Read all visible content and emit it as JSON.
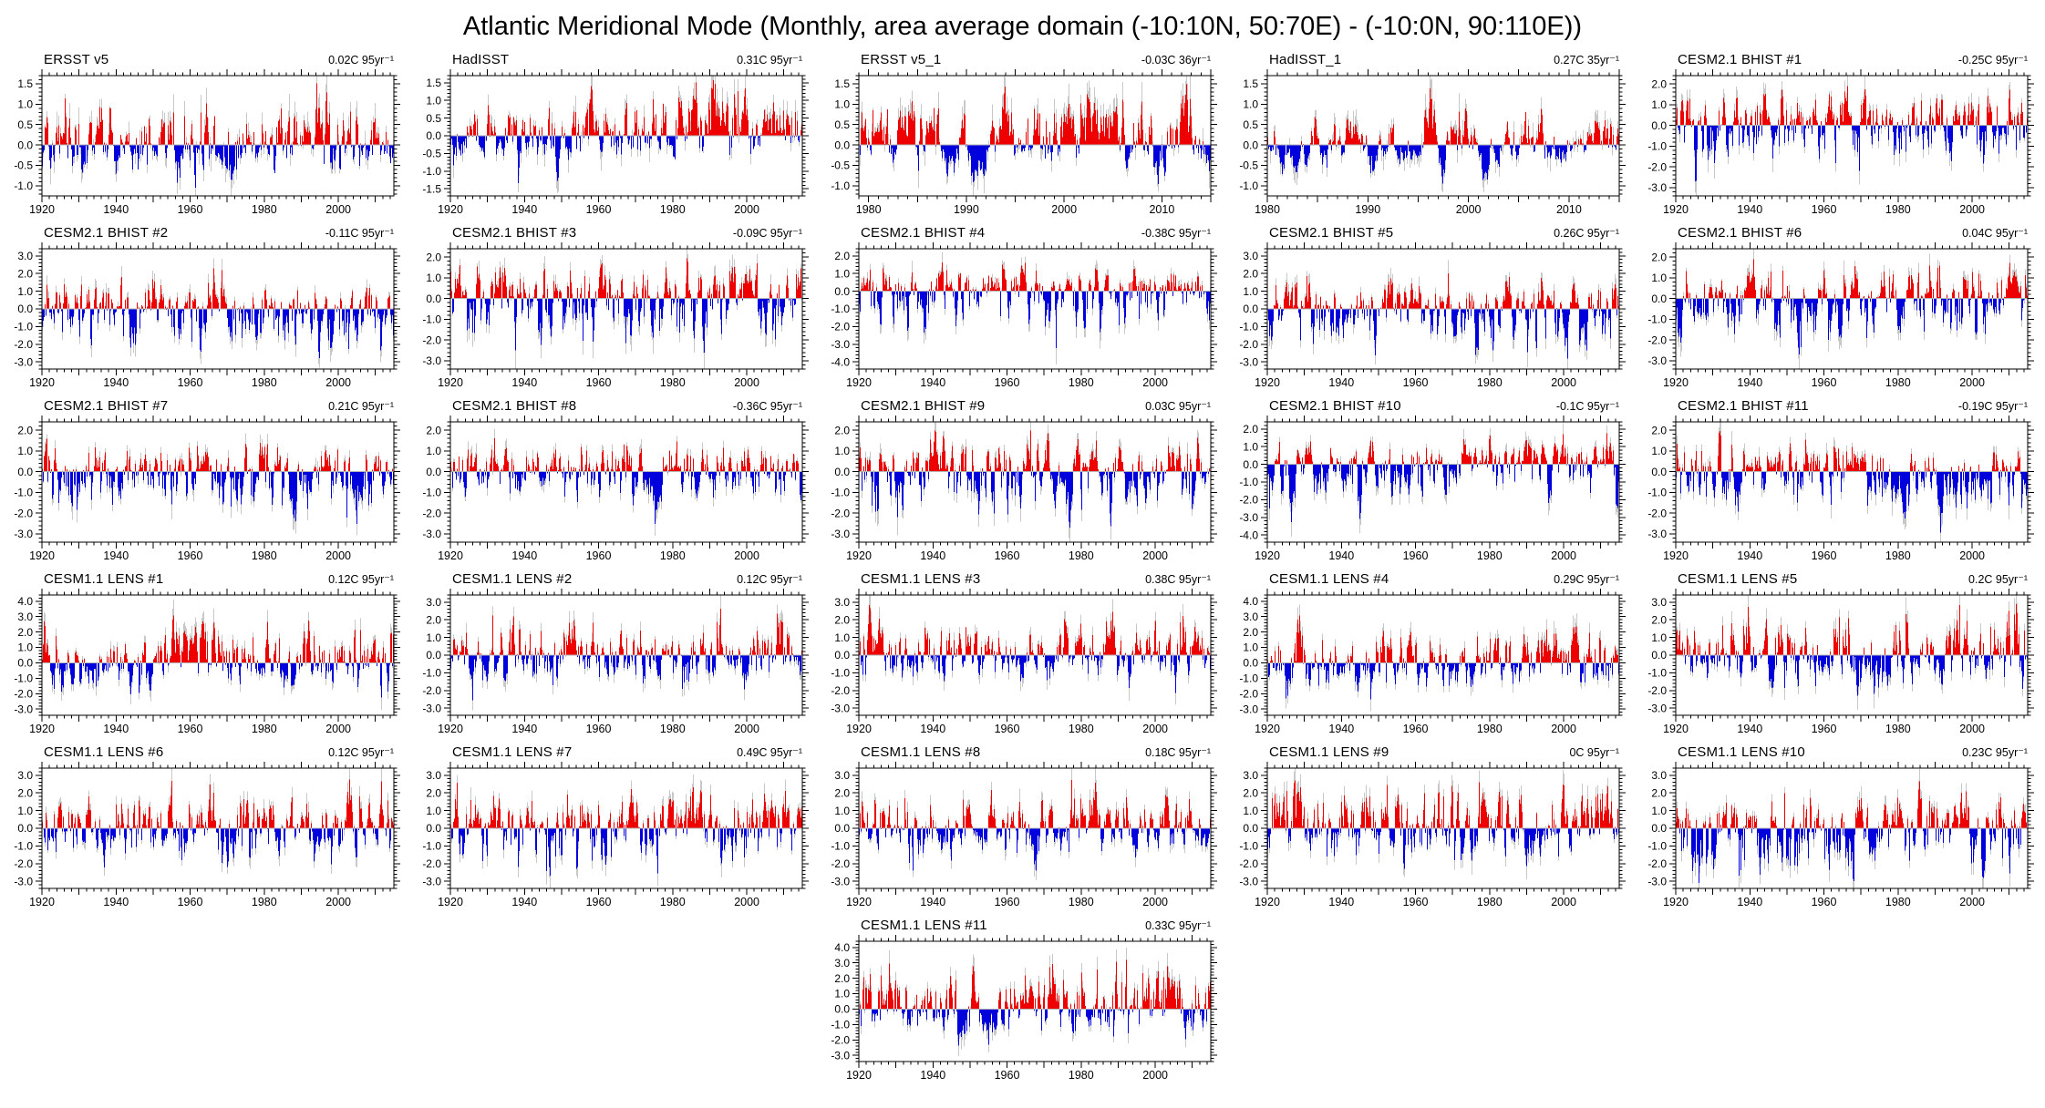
{
  "page": {
    "title": "Atlantic Meridional Mode (Monthly, area average domain (-10:10N, 50:70E) - (-10:0N, 90:110E))"
  },
  "colors": {
    "positive_bar": "#ee0000",
    "negative_bar": "#0000dd",
    "raw_envelope_bar": "#c8c8c8",
    "zero_line": "#b4b4b4",
    "axis": "#000000",
    "background": "#ffffff"
  },
  "layout": {
    "columns": 5,
    "rows": 6,
    "last_row_panel_column": 3,
    "legend": "none",
    "grid_lines": "off"
  },
  "chart_data": [
    {
      "type": "bar",
      "title": "ERSST v5",
      "trend_label": "0.02C 95yr⁻¹",
      "x_start": 1920,
      "x_end": 2015,
      "xticks": [
        1920,
        1940,
        1960,
        1980,
        2000
      ],
      "ystep": 0.5,
      "ymin_label": -1.0,
      "ymax_label": 1.5,
      "ylim": [
        -1.25,
        1.7
      ],
      "est_max": 1.5,
      "est_min": -1.05,
      "seed": 11
    },
    {
      "type": "bar",
      "title": "HadISST",
      "trend_label": "0.31C 95yr⁻¹",
      "x_start": 1920,
      "x_end": 2015,
      "xticks": [
        1920,
        1940,
        1960,
        1980,
        2000
      ],
      "ystep": 0.5,
      "ymin_label": -1.5,
      "ymax_label": 1.5,
      "ylim": [
        -1.7,
        1.7
      ],
      "est_max": 1.5,
      "est_min": -1.25,
      "seed": 22
    },
    {
      "type": "bar",
      "title": "ERSST v5_1",
      "trend_label": "-0.03C 36yr⁻¹",
      "x_start": 1979,
      "x_end": 2015,
      "xticks": [
        1980,
        1990,
        2000,
        2010
      ],
      "ystep": 0.5,
      "ymin_label": -1.0,
      "ymax_label": 1.5,
      "ylim": [
        -1.25,
        1.7
      ],
      "est_max": 1.5,
      "est_min": -0.95,
      "seed": 33
    },
    {
      "type": "bar",
      "title": "HadISST_1",
      "trend_label": "0.27C 35yr⁻¹",
      "x_start": 1980,
      "x_end": 2015,
      "xticks": [
        1980,
        1990,
        2000,
        2010
      ],
      "ystep": 0.5,
      "ymin_label": -1.0,
      "ymax_label": 1.5,
      "ylim": [
        -1.25,
        1.7
      ],
      "est_max": 1.4,
      "est_min": -0.95,
      "seed": 44
    },
    {
      "type": "bar",
      "title": "CESM2.1 BHIST #1",
      "trend_label": "-0.25C 95yr⁻¹",
      "x_start": 1920,
      "x_end": 2015,
      "xticks": [
        1920,
        1940,
        1960,
        1980,
        2000
      ],
      "ystep": 1.0,
      "ymin_label": -3.0,
      "ymax_label": 2.0,
      "ylim": [
        -3.4,
        2.4
      ],
      "est_max": 1.9,
      "est_min": -2.8,
      "seed": 55
    },
    {
      "type": "bar",
      "title": "CESM2.1 BHIST #2",
      "trend_label": "-0.11C 95yr⁻¹",
      "x_start": 1920,
      "x_end": 2015,
      "xticks": [
        1920,
        1940,
        1960,
        1980,
        2000
      ],
      "ystep": 1.0,
      "ymin_label": -3.0,
      "ymax_label": 3.0,
      "ylim": [
        -3.4,
        3.4
      ],
      "est_max": 2.3,
      "est_min": -2.75,
      "seed": 66
    },
    {
      "type": "bar",
      "title": "CESM2.1 BHIST #3",
      "trend_label": "-0.09C 95yr⁻¹",
      "x_start": 1920,
      "x_end": 2015,
      "xticks": [
        1920,
        1940,
        1960,
        1980,
        2000
      ],
      "ystep": 1.0,
      "ymin_label": -3.0,
      "ymax_label": 2.0,
      "ylim": [
        -3.4,
        2.4
      ],
      "est_max": 1.95,
      "est_min": -2.6,
      "seed": 77
    },
    {
      "type": "bar",
      "title": "CESM2.1 BHIST #4",
      "trend_label": "-0.38C 95yr⁻¹",
      "x_start": 1920,
      "x_end": 2015,
      "xticks": [
        1920,
        1940,
        1960,
        1980,
        2000
      ],
      "ystep": 1.0,
      "ymin_label": -4.0,
      "ymax_label": 2.0,
      "ylim": [
        -4.4,
        2.4
      ],
      "est_max": 1.6,
      "est_min": -3.2,
      "seed": 88
    },
    {
      "type": "bar",
      "title": "CESM2.1 BHIST #5",
      "trend_label": "0.26C 95yr⁻¹",
      "x_start": 1920,
      "x_end": 2015,
      "xticks": [
        1920,
        1940,
        1960,
        1980,
        2000
      ],
      "ystep": 1.0,
      "ymin_label": -3.0,
      "ymax_label": 3.0,
      "ylim": [
        -3.4,
        3.4
      ],
      "est_max": 2.0,
      "est_min": -2.9,
      "seed": 99
    },
    {
      "type": "bar",
      "title": "CESM2.1 BHIST #6",
      "trend_label": "0.04C 95yr⁻¹",
      "x_start": 1920,
      "x_end": 2015,
      "xticks": [
        1920,
        1940,
        1960,
        1980,
        2000
      ],
      "ystep": 1.0,
      "ymin_label": -3.0,
      "ymax_label": 2.0,
      "ylim": [
        -3.4,
        2.4
      ],
      "est_max": 1.9,
      "est_min": -2.7,
      "seed": 101
    },
    {
      "type": "bar",
      "title": "CESM2.1 BHIST #7",
      "trend_label": "0.21C 95yr⁻¹",
      "x_start": 1920,
      "x_end": 2015,
      "xticks": [
        1920,
        1940,
        1960,
        1980,
        2000
      ],
      "ystep": 1.0,
      "ymin_label": -3.0,
      "ymax_label": 2.0,
      "ylim": [
        -3.4,
        2.4
      ],
      "est_max": 1.7,
      "est_min": -2.6,
      "seed": 111
    },
    {
      "type": "bar",
      "title": "CESM2.1 BHIST #8",
      "trend_label": "-0.36C 95yr⁻¹",
      "x_start": 1920,
      "x_end": 2015,
      "xticks": [
        1920,
        1940,
        1960,
        1980,
        2000
      ],
      "ystep": 1.0,
      "ymin_label": -3.0,
      "ymax_label": 2.0,
      "ylim": [
        -3.4,
        2.4
      ],
      "est_max": 1.5,
      "est_min": -2.5,
      "seed": 121
    },
    {
      "type": "bar",
      "title": "CESM2.1 BHIST #9",
      "trend_label": "0.03C 95yr⁻¹",
      "x_start": 1920,
      "x_end": 2015,
      "xticks": [
        1920,
        1940,
        1960,
        1980,
        2000
      ],
      "ystep": 1.0,
      "ymin_label": -3.0,
      "ymax_label": 2.0,
      "ylim": [
        -3.4,
        2.4
      ],
      "est_max": 2.0,
      "est_min": -2.7,
      "seed": 131
    },
    {
      "type": "bar",
      "title": "CESM2.1 BHIST #10",
      "trend_label": "-0.1C 95yr⁻¹",
      "x_start": 1920,
      "x_end": 2015,
      "xticks": [
        1920,
        1940,
        1960,
        1980,
        2000
      ],
      "ystep": 1.0,
      "ymin_label": -4.0,
      "ymax_label": 2.0,
      "ylim": [
        -4.4,
        2.4
      ],
      "est_max": 1.8,
      "est_min": -3.3,
      "seed": 141
    },
    {
      "type": "bar",
      "title": "CESM2.1 BHIST #11",
      "trend_label": "-0.19C 95yr⁻¹",
      "x_start": 1920,
      "x_end": 2015,
      "xticks": [
        1920,
        1940,
        1960,
        1980,
        2000
      ],
      "ystep": 1.0,
      "ymin_label": -3.0,
      "ymax_label": 2.0,
      "ylim": [
        -3.4,
        2.4
      ],
      "est_max": 1.9,
      "est_min": -2.9,
      "seed": 151
    },
    {
      "type": "bar",
      "title": "CESM1.1 LENS #1",
      "trend_label": "0.12C 95yr⁻¹",
      "x_start": 1920,
      "x_end": 2015,
      "xticks": [
        1920,
        1940,
        1960,
        1980,
        2000
      ],
      "ystep": 1.0,
      "ymin_label": -3.0,
      "ymax_label": 4.0,
      "ylim": [
        -3.4,
        4.4
      ],
      "est_max": 3.1,
      "est_min": -2.3,
      "seed": 161
    },
    {
      "type": "bar",
      "title": "CESM1.1 LENS #2",
      "trend_label": "0.12C 95yr⁻¹",
      "x_start": 1920,
      "x_end": 2015,
      "xticks": [
        1920,
        1940,
        1960,
        1980,
        2000
      ],
      "ystep": 1.0,
      "ymin_label": -3.0,
      "ymax_label": 3.0,
      "ylim": [
        -3.4,
        3.4
      ],
      "est_max": 2.6,
      "est_min": -2.5,
      "seed": 171
    },
    {
      "type": "bar",
      "title": "CESM1.1 LENS #3",
      "trend_label": "0.38C 95yr⁻¹",
      "x_start": 1920,
      "x_end": 2015,
      "xticks": [
        1920,
        1940,
        1960,
        1980,
        2000
      ],
      "ystep": 1.0,
      "ymin_label": -3.0,
      "ymax_label": 3.0,
      "ylim": [
        -3.4,
        3.4
      ],
      "est_max": 3.0,
      "est_min": -2.3,
      "seed": 181
    },
    {
      "type": "bar",
      "title": "CESM1.1 LENS #4",
      "trend_label": "0.29C 95yr⁻¹",
      "x_start": 1920,
      "x_end": 2015,
      "xticks": [
        1920,
        1940,
        1960,
        1980,
        2000
      ],
      "ystep": 1.0,
      "ymin_label": -3.0,
      "ymax_label": 4.0,
      "ylim": [
        -3.4,
        4.4
      ],
      "est_max": 3.2,
      "est_min": -2.3,
      "seed": 191
    },
    {
      "type": "bar",
      "title": "CESM1.1 LENS #5",
      "trend_label": "0.2C 95yr⁻¹",
      "x_start": 1920,
      "x_end": 2015,
      "xticks": [
        1920,
        1940,
        1960,
        1980,
        2000
      ],
      "ystep": 1.0,
      "ymin_label": -3.0,
      "ymax_label": 3.0,
      "ylim": [
        -3.4,
        3.4
      ],
      "est_max": 2.8,
      "est_min": -2.3,
      "seed": 201
    },
    {
      "type": "bar",
      "title": "CESM1.1 LENS #6",
      "trend_label": "0.12C 95yr⁻¹",
      "x_start": 1920,
      "x_end": 2015,
      "xticks": [
        1920,
        1940,
        1960,
        1980,
        2000
      ],
      "ystep": 1.0,
      "ymin_label": -3.0,
      "ymax_label": 3.0,
      "ylim": [
        -3.4,
        3.4
      ],
      "est_max": 2.7,
      "est_min": -2.2,
      "seed": 211
    },
    {
      "type": "bar",
      "title": "CESM1.1 LENS #7",
      "trend_label": "0.49C 95yr⁻¹",
      "x_start": 1920,
      "x_end": 2015,
      "xticks": [
        1920,
        1940,
        1960,
        1980,
        2000
      ],
      "ystep": 1.0,
      "ymin_label": -3.0,
      "ymax_label": 3.0,
      "ylim": [
        -3.4,
        3.4
      ],
      "est_max": 2.8,
      "est_min": -2.6,
      "seed": 221
    },
    {
      "type": "bar",
      "title": "CESM1.1 LENS #8",
      "trend_label": "0.18C 95yr⁻¹",
      "x_start": 1920,
      "x_end": 2015,
      "xticks": [
        1920,
        1940,
        1960,
        1980,
        2000
      ],
      "ystep": 1.0,
      "ymin_label": -3.0,
      "ymax_label": 3.0,
      "ylim": [
        -3.4,
        3.4
      ],
      "est_max": 2.7,
      "est_min": -2.4,
      "seed": 231
    },
    {
      "type": "bar",
      "title": "CESM1.1 LENS #9",
      "trend_label": "0C 95yr⁻¹",
      "x_start": 1920,
      "x_end": 2015,
      "xticks": [
        1920,
        1940,
        1960,
        1980,
        2000
      ],
      "ystep": 1.0,
      "ymin_label": -3.0,
      "ymax_label": 3.0,
      "ylim": [
        -3.4,
        3.4
      ],
      "est_max": 2.7,
      "est_min": -2.3,
      "seed": 241
    },
    {
      "type": "bar",
      "title": "CESM1.1 LENS #10",
      "trend_label": "0.23C 95yr⁻¹",
      "x_start": 1920,
      "x_end": 2015,
      "xticks": [
        1920,
        1940,
        1960,
        1980,
        2000
      ],
      "ystep": 1.0,
      "ymin_label": -3.0,
      "ymax_label": 3.0,
      "ylim": [
        -3.4,
        3.4
      ],
      "est_max": 2.6,
      "est_min": -3.0,
      "seed": 251
    },
    {
      "type": "bar",
      "title": "CESM1.1 LENS #11",
      "trend_label": "0.33C 95yr⁻¹",
      "x_start": 1920,
      "x_end": 2015,
      "xticks": [
        1920,
        1940,
        1960,
        1980,
        2000
      ],
      "ystep": 1.0,
      "ymin_label": -3.0,
      "ymax_label": 4.0,
      "ylim": [
        -3.4,
        4.4
      ],
      "est_max": 3.1,
      "est_min": -2.3,
      "seed": 261
    }
  ]
}
